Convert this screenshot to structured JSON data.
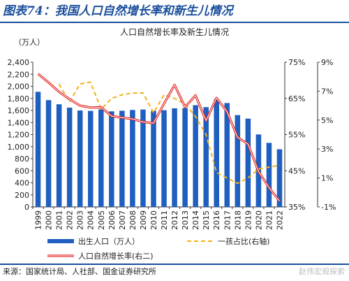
{
  "figure": {
    "title": "图表74：我国人口自然增长率和新生儿情况",
    "source": "来源：国家统计局、人社部、国金证券研究所",
    "watermark": "赵伟宏观探索"
  },
  "colors": {
    "bar": "#1f5fbf",
    "ratio_line": "#f2b21a",
    "rate_line_outer": "#e02020",
    "rate_line_inner": "#ffffff",
    "frame": "#1a4f9c"
  },
  "chart_data": {
    "type": "bar",
    "title": "人口自然增长率及新生儿情况",
    "left_unit": "（万人）",
    "categories": [
      "1999",
      "2000",
      "2001",
      "2002",
      "2003",
      "2004",
      "2005",
      "2006",
      "2007",
      "2008",
      "2009",
      "2010",
      "2011",
      "2012",
      "2013",
      "2014",
      "2015",
      "2016",
      "2017",
      "2018",
      "2019",
      "2020",
      "2021",
      "2022"
    ],
    "y_left": {
      "range": [
        0,
        2400
      ],
      "ticks": [
        "0",
        "200",
        "400",
        "600",
        "800",
        "1,000",
        "1,200",
        "1,400",
        "1,600",
        "1,800",
        "2,000",
        "2,200",
        "2,400"
      ]
    },
    "y_right1": {
      "range": [
        35,
        75
      ],
      "ticks": [
        "35%",
        "45%",
        "55%",
        "65%",
        "75%"
      ]
    },
    "y_right2": {
      "range": [
        -1,
        9
      ],
      "ticks": [
        "-1%",
        "1%",
        "3%",
        "5%",
        "7%",
        "9%"
      ]
    },
    "series": [
      {
        "name": "出生人口（万人）",
        "type": "bar",
        "axis": "left",
        "values": [
          1909,
          1771,
          1702,
          1647,
          1599,
          1593,
          1617,
          1585,
          1595,
          1608,
          1615,
          1592,
          1604,
          1635,
          1640,
          1687,
          1655,
          1786,
          1723,
          1523,
          1465,
          1202,
          1062,
          956
        ]
      },
      {
        "name": "一孩占比(右轴)",
        "type": "line",
        "style": "dashed",
        "axis": "right1",
        "values": [
          null,
          null,
          69,
          64,
          69,
          69.5,
          62,
          65,
          66,
          66.5,
          66.5,
          61,
          66,
          65,
          63.5,
          60,
          55,
          44.5,
          43,
          41.5,
          43,
          45.5,
          46,
          46.5
        ]
      },
      {
        "name": "人口自然增长率(右二)",
        "type": "line",
        "axis": "right2",
        "values": [
          8.2,
          7.6,
          6.95,
          6.45,
          6.0,
          5.87,
          5.89,
          5.28,
          5.17,
          5.08,
          4.87,
          4.79,
          6.13,
          7.43,
          5.9,
          6.71,
          4.96,
          6.53,
          5.58,
          3.81,
          3.34,
          1.45,
          0.34,
          -0.6
        ]
      }
    ]
  }
}
